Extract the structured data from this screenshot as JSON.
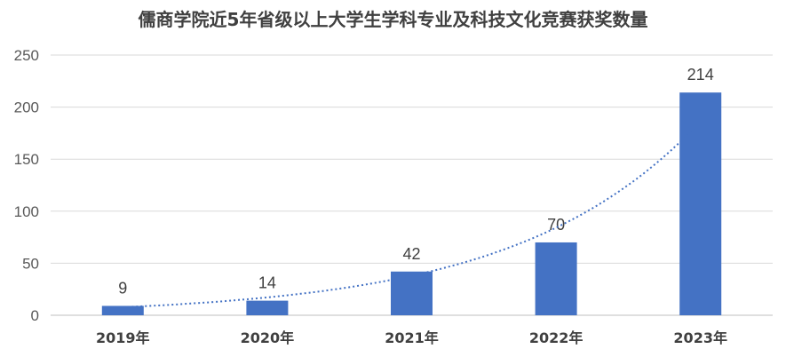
{
  "chart_data": {
    "type": "bar",
    "title": "儒商学院近5年省级以上大学生学科专业及科技文化竞赛获奖数量",
    "categories": [
      "2019年",
      "2020年",
      "2021年",
      "2022年",
      "2023年"
    ],
    "values": [
      9,
      14,
      42,
      70,
      214
    ],
    "ylim": [
      0,
      250
    ],
    "yticks": [
      0,
      50,
      100,
      150,
      200,
      250
    ],
    "grid": true,
    "trendline": "exponential",
    "colors": {
      "bar": "#4472C4",
      "trendline": "#4472C4",
      "grid": "#D9D9D9",
      "axis": "#BFBFBF"
    }
  }
}
